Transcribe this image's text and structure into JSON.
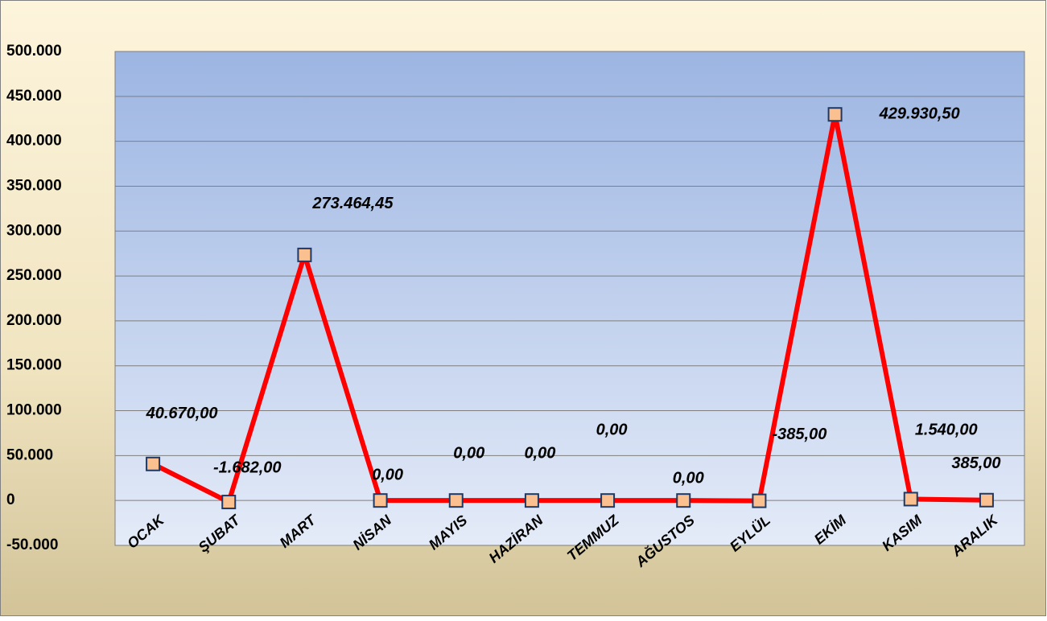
{
  "chart_data": {
    "type": "line",
    "categories": [
      "OCAK",
      "ŞUBAT",
      "MART",
      "NİSAN",
      "MAYIS",
      "HAZİRAN",
      "TEMMUZ",
      "AĞUSTOS",
      "EYLÜL",
      "EKİM",
      "KASIM",
      "ARALIK"
    ],
    "series": [
      {
        "color": "#ff0000",
        "marker_color": "#fac090",
        "values": [
          40670,
          -1682,
          273464.45,
          0,
          0,
          0,
          0,
          0,
          -385,
          429930.5,
          1540,
          385
        ],
        "value_labels": [
          "40.670,00",
          "-1.682,00",
          "273.464,45",
          "0,00",
          "0,00",
          "0,00",
          "0,00",
          "0,00",
          "-385,00",
          "429.930,50",
          "1.540,00",
          "385,00"
        ]
      }
    ],
    "ylim": [
      -50000,
      500000
    ],
    "yticks": [
      {
        "value": -50000,
        "label": "-50.000"
      },
      0,
      {
        "value": 50000,
        "label": "50.000"
      },
      {
        "value": 100000,
        "label": "100.000"
      },
      {
        "value": 150000,
        "label": "150.000"
      },
      {
        "value": 200000,
        "label": "200.000"
      },
      {
        "value": 250000,
        "label": "250.000"
      },
      {
        "value": 300000,
        "label": "300.000"
      },
      {
        "value": 350000,
        "label": "350.000"
      },
      {
        "value": 400000,
        "label": "400.000"
      },
      {
        "value": 450000,
        "label": "450.000"
      },
      {
        "value": 500000,
        "label": "500.000"
      }
    ],
    "grid": true
  }
}
